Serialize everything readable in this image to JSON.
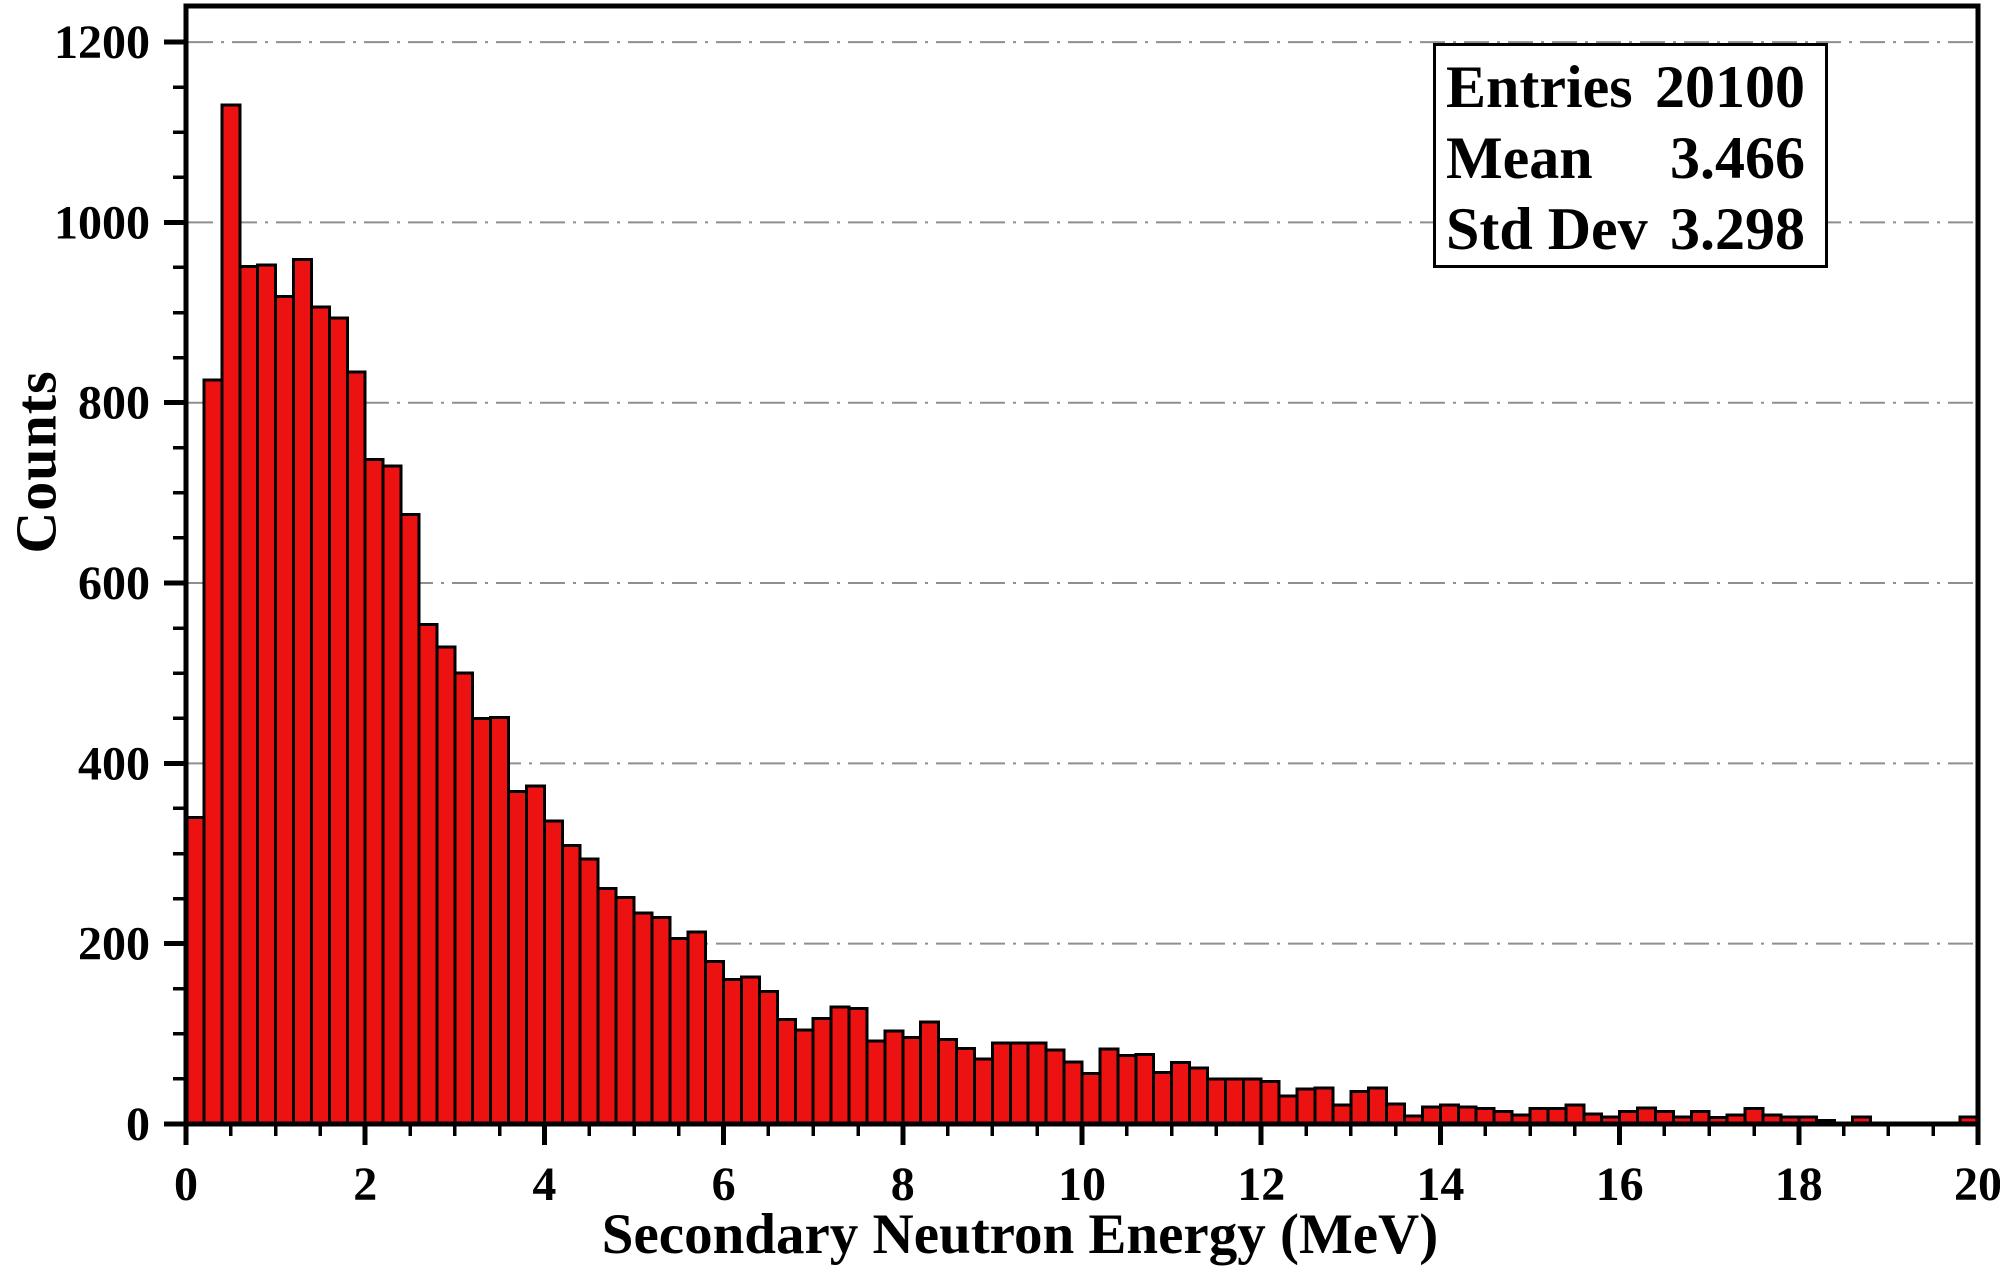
{
  "figure": {
    "background": "#FFFFFF",
    "frame_color": "#000000"
  },
  "chart_data": {
    "type": "bar",
    "subtype": "histogram",
    "title": "",
    "xlabel": "Secondary Neutron Energy (MeV)",
    "ylabel": "Counts",
    "x_start": 0.0,
    "bin_width": 0.2,
    "values": [
      340,
      825,
      1130,
      951,
      953,
      918,
      959,
      906,
      894,
      834,
      737,
      730,
      676,
      554,
      529,
      500,
      450,
      451,
      369,
      375,
      336,
      309,
      294,
      261,
      251,
      234,
      229,
      206,
      213,
      180,
      160,
      163,
      147,
      116,
      104,
      117,
      130,
      128,
      92,
      103,
      96,
      113,
      94,
      84,
      72,
      90,
      90,
      90,
      82,
      69,
      56,
      83,
      76,
      77,
      57,
      68,
      62,
      50,
      50,
      50,
      47,
      31,
      39,
      40,
      21,
      36,
      40,
      22,
      9,
      19,
      21,
      19,
      17,
      14,
      10,
      17,
      17,
      21,
      11,
      8,
      14,
      18,
      14,
      8,
      14,
      7,
      10,
      17,
      10,
      8,
      8,
      4,
      0,
      8,
      0,
      0,
      0,
      0,
      0,
      8
    ],
    "xlim": [
      0,
      20
    ],
    "ylim": [
      0,
      1240
    ],
    "x_major_ticks": [
      0,
      2,
      4,
      6,
      8,
      10,
      12,
      14,
      16,
      18,
      20
    ],
    "x_minor_step": 0.5,
    "y_major_ticks": [
      0,
      200,
      400,
      600,
      800,
      1000,
      1200
    ],
    "y_minor_step": 50,
    "grid": {
      "horizontal": true,
      "vertical": false,
      "style": "dash-dot",
      "color": "#8F8F8F"
    },
    "legend_position": "none",
    "bar_fill": "#EC1212",
    "bar_edge": "#000000"
  },
  "stats_box": {
    "rows": [
      {
        "label": "Entries",
        "value": "20100"
      },
      {
        "label": "Mean",
        "value": "3.466"
      },
      {
        "label": "Std Dev",
        "value": "3.298"
      }
    ]
  }
}
